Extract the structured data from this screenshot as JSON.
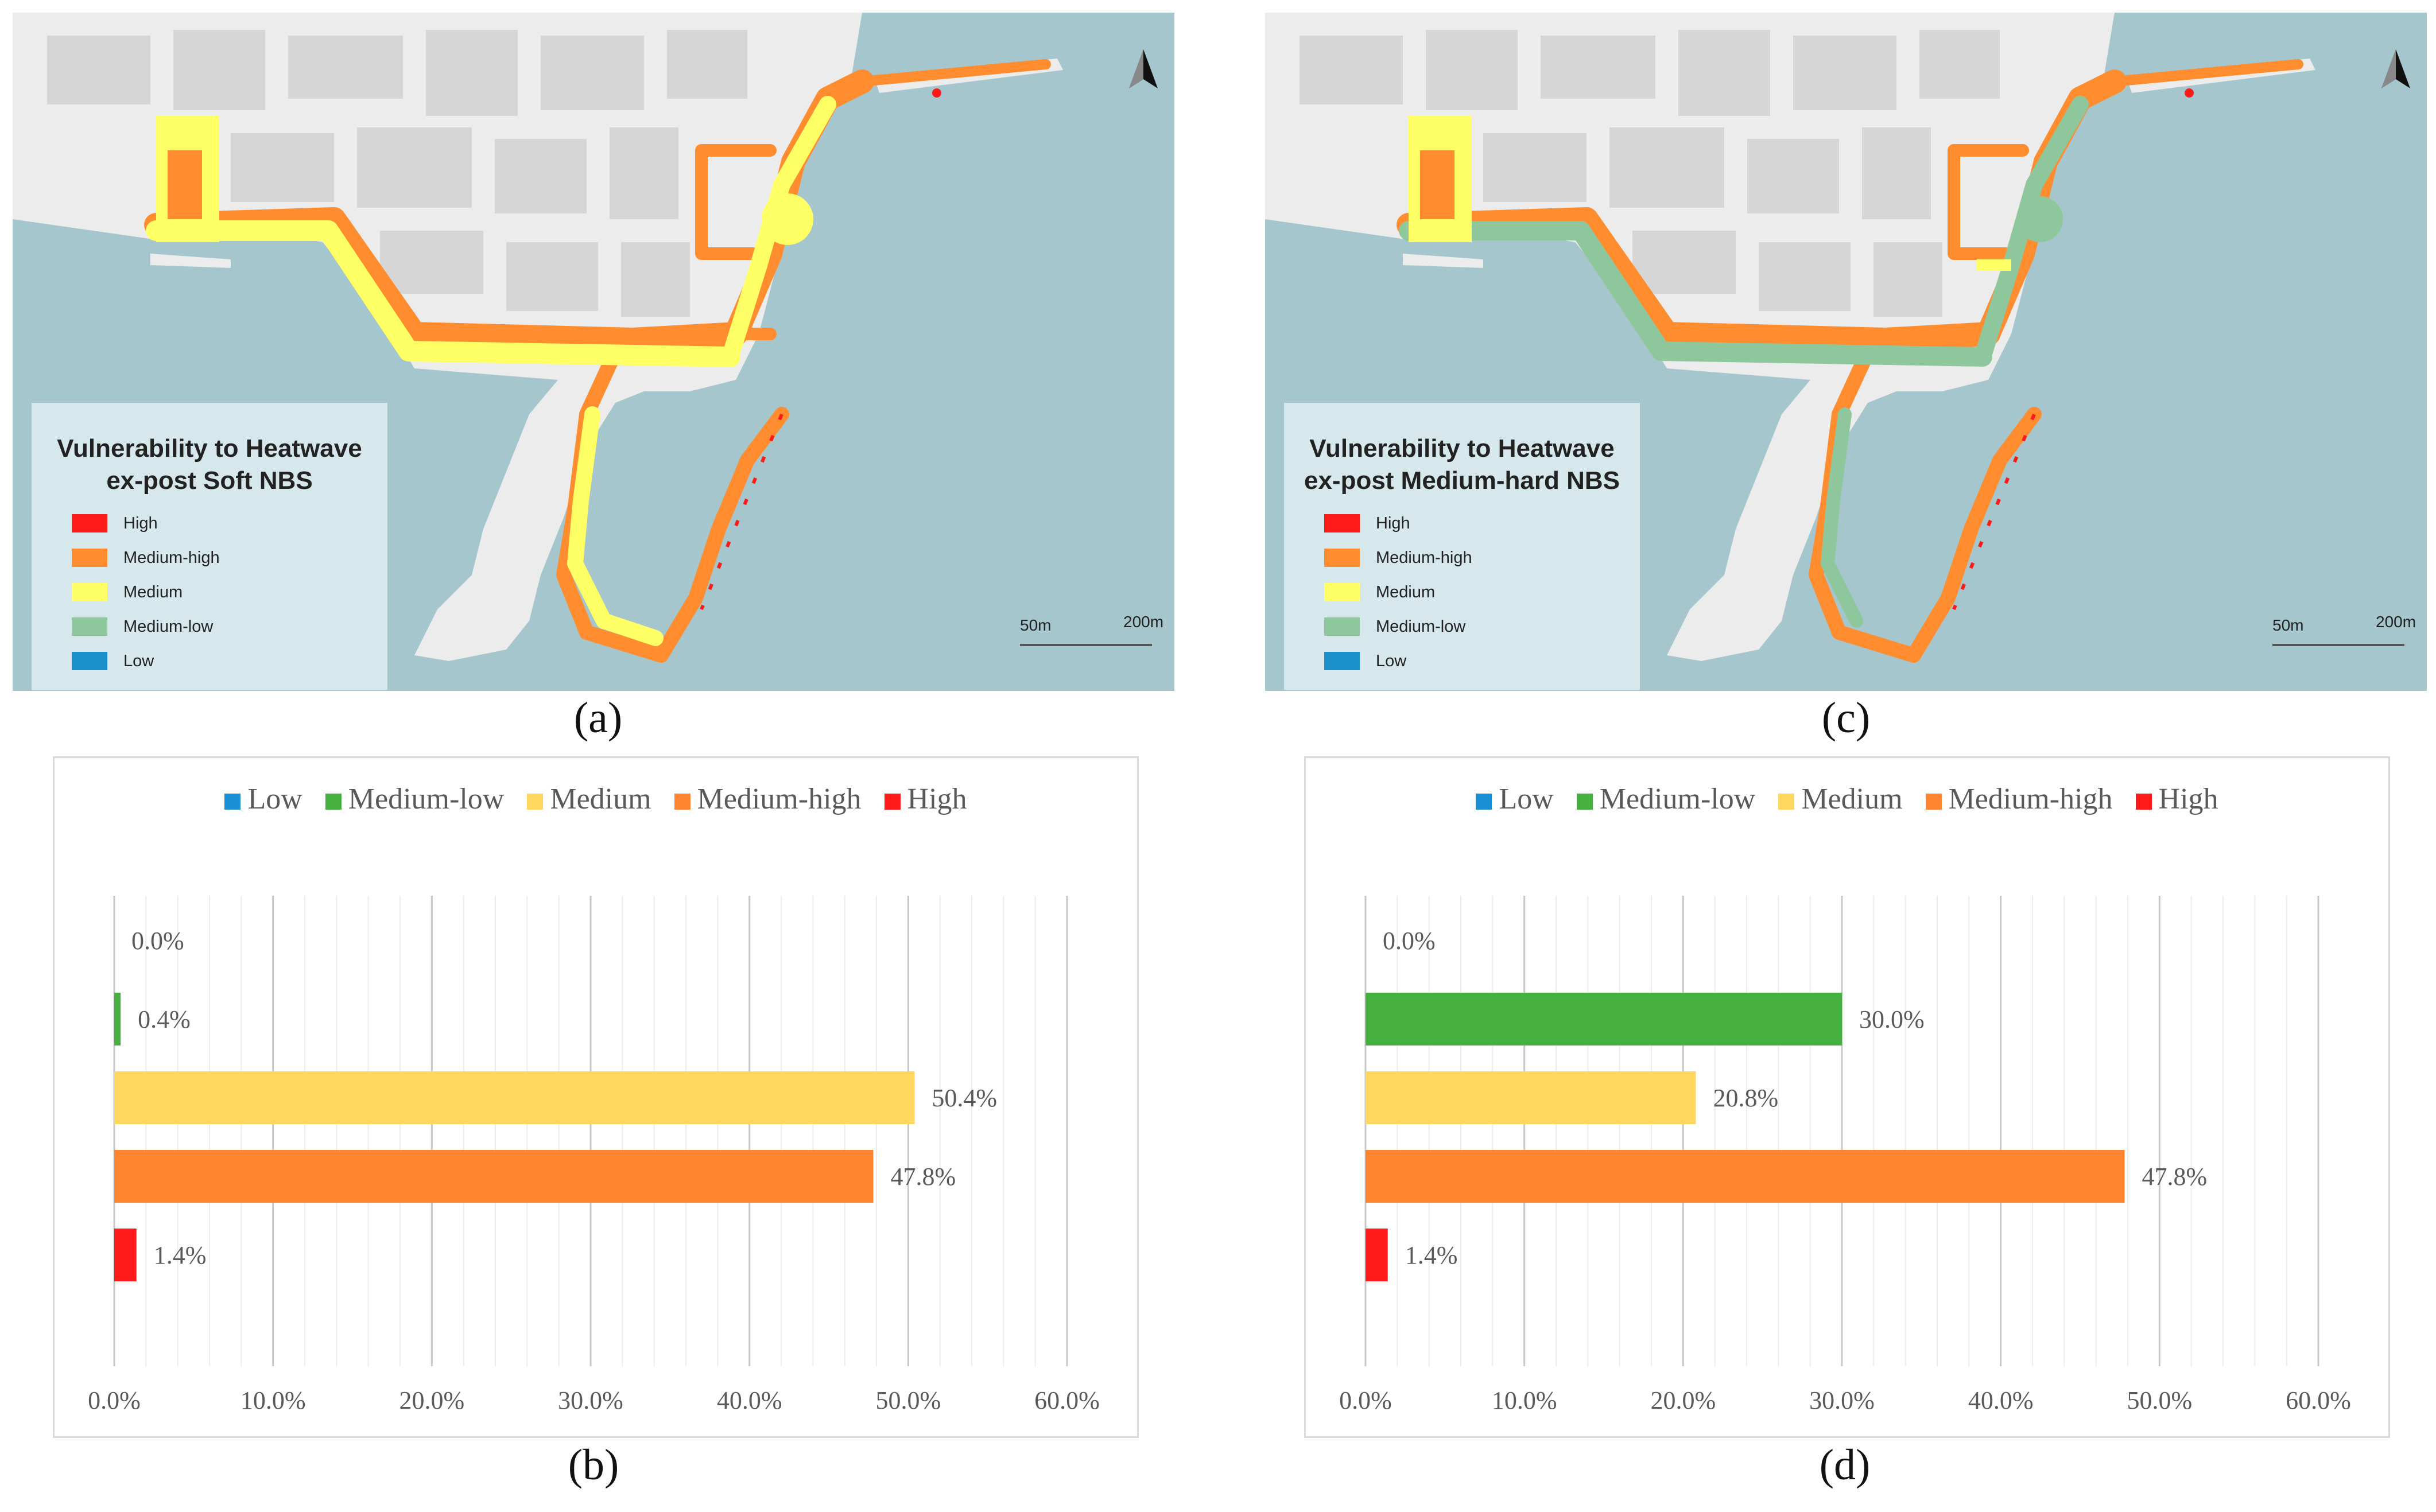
{
  "maps": {
    "a": {
      "label": "(a)",
      "title_line1": "Vulnerability to Heatwave",
      "title_line2": "ex-post Soft NBS",
      "scale_labels": [
        "50m",
        "200m"
      ]
    },
    "c": {
      "label": "(c)",
      "title_line1": "Vulnerability to Heatwave",
      "title_line2": "ex-post Medium-hard NBS",
      "scale_labels": [
        "50m",
        "200m"
      ]
    },
    "legend": [
      {
        "label": "High",
        "color": "#ff1a1a"
      },
      {
        "label": "Medium-high",
        "color": "#ff8c2e"
      },
      {
        "label": "Medium",
        "color": "#ffff66"
      },
      {
        "label": "Medium-low",
        "color": "#8fc79d"
      },
      {
        "label": "Low",
        "color": "#1a8fc9"
      }
    ],
    "colors": {
      "water": "#a4c6cc",
      "land": "#f0f0f0",
      "blocks": "#d9d9d9",
      "land_grey": "#cfcfcf"
    }
  },
  "chart_data": [
    {
      "type": "bar",
      "orientation": "horizontal",
      "panel_label": "(b)",
      "categories": [
        "Low",
        "Medium-low",
        "Medium",
        "Medium-high",
        "High"
      ],
      "values": [
        0.0,
        0.4,
        50.4,
        47.8,
        1.4
      ],
      "value_labels": [
        "0.0%",
        "0.4%",
        "50.4%",
        "47.8%",
        "1.4%"
      ],
      "colors": [
        "#1a8fd6",
        "#45b03d",
        "#ffd75e",
        "#ff8430",
        "#ff1a1a"
      ],
      "xlim": [
        0,
        60
      ],
      "xticks": [
        "0.0%",
        "10.0%",
        "20.0%",
        "30.0%",
        "40.0%",
        "50.0%",
        "60.0%"
      ],
      "legend_labels": [
        "Low",
        "Medium-low",
        "Medium",
        "Medium-high",
        "High"
      ],
      "legend_position": "top",
      "grid": true
    },
    {
      "type": "bar",
      "orientation": "horizontal",
      "panel_label": "(d)",
      "categories": [
        "Low",
        "Medium-low",
        "Medium",
        "Medium-high",
        "High"
      ],
      "values": [
        0.0,
        30.0,
        20.8,
        47.8,
        1.4
      ],
      "value_labels": [
        "0.0%",
        "30.0%",
        "20.8%",
        "47.8%",
        "1.4%"
      ],
      "colors": [
        "#1a8fd6",
        "#45b03d",
        "#ffd75e",
        "#ff8430",
        "#ff1a1a"
      ],
      "xlim": [
        0,
        60
      ],
      "xticks": [
        "0.0%",
        "10.0%",
        "20.0%",
        "30.0%",
        "40.0%",
        "50.0%",
        "60.0%"
      ],
      "legend_labels": [
        "Low",
        "Medium-low",
        "Medium",
        "Medium-high",
        "High"
      ],
      "legend_position": "top",
      "grid": true
    }
  ]
}
